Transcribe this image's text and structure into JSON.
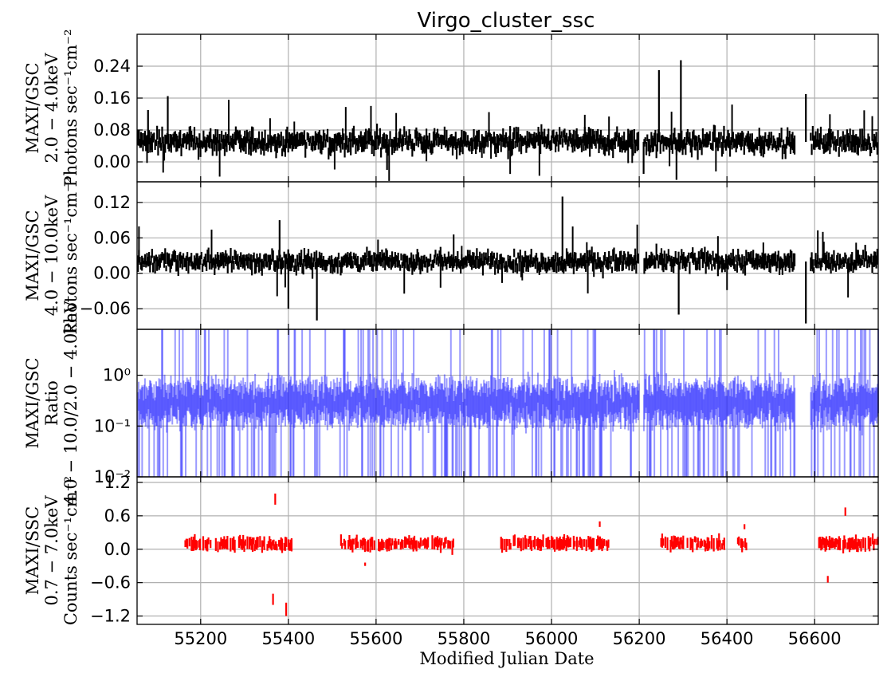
{
  "title": "Virgo_cluster_ssc",
  "colors": {
    "gsc": "#000000",
    "ratio": "#1f1fff",
    "ssc": "#ff0000",
    "grid": "#b0b0b0"
  },
  "chart_data": [
    {
      "type": "scatter",
      "panel": "gsc_low",
      "ylabel_lines": [
        "MAXI/GSC",
        "2.0 − 4.0keV",
        "Photons sec⁻¹cm⁻²"
      ],
      "xlim": [
        55055,
        56745
      ],
      "ylim": [
        -0.05,
        0.32
      ],
      "yticks": [
        0.0,
        0.08,
        0.16,
        0.24
      ],
      "ytick_labels": [
        "0.00",
        "0.08",
        "0.16",
        "0.24"
      ],
      "series": [
        {
          "values_description": "noisy error bars around 0.05 with data gaps",
          "mean": 0.05,
          "spread": 0.02,
          "gaps": [
            [
              56200,
              56210
            ],
            [
              56555,
              56590
            ]
          ],
          "outliers": [
            [
              55080,
              0.13
            ],
            [
              55125,
              0.165
            ],
            [
              56245,
              0.23
            ],
            [
              56295,
              0.255
            ],
            [
              56285,
              -0.045
            ],
            [
              56210,
              -0.03
            ],
            [
              55625,
              -0.02
            ],
            [
              56580,
              0.17
            ]
          ]
        }
      ]
    },
    {
      "type": "scatter",
      "panel": "gsc_high",
      "ylabel_lines": [
        "MAXI/GSC",
        "4.0 − 10.0keV",
        "Photons sec⁻¹cm⁻²"
      ],
      "xlim": [
        55055,
        56745
      ],
      "ylim": [
        -0.095,
        0.155
      ],
      "yticks": [
        -0.06,
        0.0,
        0.06,
        0.12
      ],
      "ytick_labels": [
        "−0.06",
        "0.00",
        "0.06",
        "0.12"
      ],
      "series": [
        {
          "values_description": "noisy error bars around 0.02 with data gaps",
          "mean": 0.02,
          "spread": 0.012,
          "gaps": [
            [
              56200,
              56210
            ],
            [
              56555,
              56590
            ]
          ],
          "outliers": [
            [
              56025,
              0.13
            ],
            [
              55380,
              0.09
            ],
            [
              55465,
              -0.08
            ],
            [
              56580,
              -0.085
            ],
            [
              55400,
              -0.06
            ],
            [
              56290,
              -0.07
            ]
          ]
        }
      ]
    },
    {
      "type": "scatter",
      "panel": "ratio",
      "ylabel_lines": [
        "MAXI/GSC",
        "Ratio",
        "4.0 − 10.0/2.0 − 4.0keV"
      ],
      "yscale": "log",
      "xlim": [
        55055,
        56745
      ],
      "ylim": [
        0.01,
        8.0
      ],
      "yticks": [
        0.01,
        0.1,
        1.0
      ],
      "ytick_labels": [
        "10⁻²",
        "10⁻¹",
        "10⁰"
      ],
      "series": [
        {
          "values_description": "log-scale ratio around 0.3 with many points dropping to zero",
          "mean": 0.3,
          "gaps": [
            [
              56200,
              56210
            ],
            [
              56555,
              56590
            ]
          ]
        }
      ]
    },
    {
      "type": "scatter",
      "panel": "ssc",
      "ylabel_lines": [
        "MAXI/SSC",
        "0.7 − 7.0keV",
        "Counts sec⁻¹cm⁻²"
      ],
      "xlabel": "Modified Julian Date",
      "xlim": [
        55055,
        56745
      ],
      "ylim": [
        -1.35,
        1.3
      ],
      "yticks": [
        -1.2,
        -0.6,
        0.0,
        0.6,
        1.2
      ],
      "ytick_labels": [
        "−1.2",
        "−0.6",
        "0.0",
        "0.6",
        "1.2"
      ],
      "xticks": [
        55200,
        55400,
        55600,
        55800,
        56000,
        56200,
        56400,
        56600
      ],
      "xtick_labels": [
        "55200",
        "55400",
        "55600",
        "55800",
        "56000",
        "56200",
        "56400",
        "56600"
      ],
      "series": [
        {
          "values_description": "seasonal segments of points near 0.1",
          "segments": [
            [
              55165,
              55410
            ],
            [
              55520,
              55560
            ],
            [
              55565,
              55780
            ],
            [
              55885,
              56130
            ],
            [
              56250,
              56395
            ],
            [
              56425,
              56445
            ],
            [
              56610,
              56745
            ]
          ],
          "mean": 0.1,
          "outliers": [
            [
              55370,
              1.0
            ],
            [
              55365,
              -1.0
            ],
            [
              55395,
              -1.2
            ],
            [
              56110,
              0.5
            ],
            [
              56440,
              0.45
            ],
            [
              56670,
              0.75
            ],
            [
              56630,
              -0.6
            ],
            [
              55575,
              -0.3
            ]
          ]
        }
      ]
    }
  ]
}
